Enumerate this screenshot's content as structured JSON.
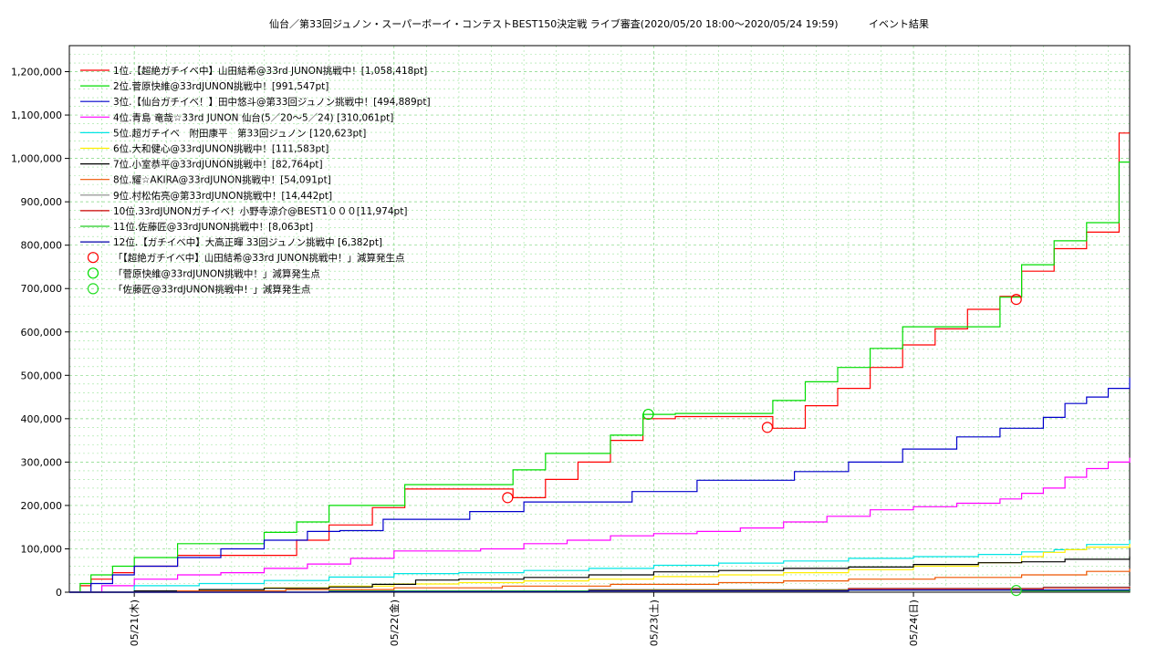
{
  "chart_data": {
    "type": "line",
    "title": "仙台／第33回ジュノン・スーパーボーイ・コンテストBEST150決定戦 ライブ審査(2020/05/20 18:00〜2020/05/24 19:59)",
    "title_suffix": "イベント結果",
    "xlabel": "",
    "ylabel": "",
    "ylim": [
      0,
      1260000
    ],
    "yticks": [
      0,
      100000,
      200000,
      300000,
      400000,
      500000,
      600000,
      700000,
      800000,
      900000,
      1000000,
      1100000,
      1200000
    ],
    "ytick_labels": [
      "0",
      "100,000",
      "200,000",
      "300,000",
      "400,000",
      "500,000",
      "600,000",
      "700,000",
      "800,000",
      "900,000",
      "1,000,000",
      "1,100,000",
      "1,200,000"
    ],
    "xlim_hours": [
      0,
      97.98
    ],
    "xticks": [
      6,
      30,
      54,
      78
    ],
    "xtick_labels": [
      "05/21(木)",
      "05/22(金)",
      "05/23(土)",
      "05/24(日)"
    ],
    "grid": true,
    "legend_position": "top-left",
    "series": [
      {
        "name": "1位.【超絶ガチイベ中】山田結希@33rd JUNON挑戦中！[1,058,418pt]",
        "color": "#ff0000",
        "x": [
          0,
          1,
          2,
          4,
          6,
          10,
          14,
          18,
          21,
          24,
          28,
          31,
          40,
          41,
          44,
          47,
          50,
          53,
          56,
          64,
          65,
          68,
          71,
          74,
          77,
          80,
          83,
          86,
          88,
          91,
          94,
          97,
          97.98
        ],
        "y": [
          0,
          15000,
          30000,
          45000,
          60000,
          85000,
          85000,
          85000,
          120000,
          155000,
          195000,
          238000,
          238000,
          218000,
          260000,
          300000,
          350000,
          400000,
          405000,
          405000,
          378000,
          430000,
          470000,
          518000,
          570000,
          607000,
          652000,
          682000,
          740000,
          792000,
          830000,
          1058418,
          1058418
        ]
      },
      {
        "name": "2位.菅原快維@33rdJUNON挑戦中！[991,547pt]",
        "color": "#00dd00",
        "x": [
          0,
          1,
          2,
          4,
          6,
          10,
          14,
          18,
          21,
          24,
          28,
          31,
          40,
          41,
          44,
          47,
          50,
          53,
          56,
          64,
          65,
          68,
          71,
          74,
          77,
          80,
          83,
          86,
          88,
          91,
          94,
          97,
          97.98
        ],
        "y": [
          0,
          20000,
          40000,
          60000,
          80000,
          112000,
          112000,
          138000,
          162000,
          200000,
          200000,
          248000,
          248000,
          282000,
          320000,
          320000,
          362000,
          410000,
          412000,
          412000,
          442000,
          485000,
          518000,
          562000,
          612000,
          612000,
          612000,
          680000,
          755000,
          810000,
          852000,
          991547,
          991547
        ]
      },
      {
        "name": "3位.【仙台ガチイベ！】田中悠斗@第33回ジュノン挑戦中！[494,889pt]",
        "color": "#0000cc",
        "x": [
          0,
          2,
          4,
          6,
          10,
          14,
          18,
          22,
          25,
          29,
          33,
          37,
          42,
          47,
          52,
          58,
          62,
          67,
          72,
          77,
          82,
          86,
          90,
          92,
          94,
          96,
          97.98
        ],
        "y": [
          0,
          20000,
          40000,
          60000,
          80000,
          100000,
          120000,
          140000,
          142000,
          168000,
          168000,
          186000,
          208000,
          208000,
          232000,
          258000,
          258000,
          278000,
          300000,
          330000,
          358000,
          378000,
          403000,
          435000,
          450000,
          470000,
          494889
        ]
      },
      {
        "name": "4位.青島 竜哉☆33rd JUNON 仙台(5／20〜5／24) [310,061pt]",
        "color": "#ff00ff",
        "x": [
          0,
          3,
          6,
          10,
          14,
          18,
          22,
          26,
          30,
          34,
          38,
          42,
          46,
          50,
          54,
          58,
          62,
          66,
          70,
          74,
          78,
          82,
          86,
          88,
          90,
          92,
          94,
          96,
          97.98
        ],
        "y": [
          0,
          15000,
          30000,
          40000,
          45000,
          55000,
          65000,
          78000,
          95000,
          95000,
          100000,
          112000,
          120000,
          130000,
          135000,
          140000,
          148000,
          162000,
          175000,
          190000,
          197000,
          205000,
          215000,
          228000,
          240000,
          265000,
          285000,
          300000,
          310061
        ]
      },
      {
        "name": "5位.超ガチイベ　附田康平　第33回ジュノン [120,623pt]",
        "color": "#00e5e5",
        "x": [
          0,
          6,
          12,
          18,
          24,
          30,
          36,
          42,
          48,
          54,
          60,
          66,
          72,
          78,
          84,
          88,
          91,
          94,
          97.98
        ],
        "y": [
          0,
          15000,
          20000,
          27000,
          35000,
          43000,
          45000,
          50000,
          55000,
          62000,
          67000,
          72000,
          78000,
          82000,
          87000,
          93000,
          98000,
          110000,
          120623
        ]
      },
      {
        "name": "6位.大和健心@33rdJUNON挑戦中！[111,583pt]",
        "color": "#ffee00",
        "x": [
          0,
          6,
          12,
          18,
          24,
          30,
          36,
          42,
          48,
          54,
          60,
          66,
          72,
          78,
          84,
          88,
          90,
          92,
          94,
          97.98
        ],
        "y": [
          0,
          3000,
          6000,
          10000,
          14000,
          19000,
          22000,
          26000,
          30000,
          36000,
          40000,
          45000,
          52000,
          60000,
          68000,
          82000,
          92000,
          98000,
          104000,
          111583
        ]
      },
      {
        "name": "7位.小室恭平@33rdJUNON挑戦中！[82,764pt]",
        "color": "#000000",
        "x": [
          0,
          6,
          12,
          18,
          24,
          28,
          32,
          36,
          42,
          48,
          54,
          60,
          66,
          72,
          78,
          84,
          88,
          92,
          97.98
        ],
        "y": [
          0,
          3000,
          6000,
          9000,
          12000,
          18000,
          28000,
          30000,
          34000,
          40000,
          47000,
          50000,
          55000,
          58000,
          64000,
          68000,
          70000,
          76000,
          82764
        ]
      },
      {
        "name": "8位.耀☆AKIRA@33rdJUNON挑戦中！[54,091pt]",
        "color": "#ee5500",
        "x": [
          0,
          10,
          20,
          30,
          40,
          50,
          60,
          66,
          72,
          80,
          88,
          94,
          97.98
        ],
        "y": [
          0,
          3000,
          6000,
          10000,
          14000,
          18000,
          22000,
          26000,
          30000,
          34000,
          40000,
          48000,
          54091
        ]
      },
      {
        "name": "9位.村松佑亮@第33rdJUNON挑戦中！[14,442pt]",
        "color": "#888888",
        "x": [
          0,
          24,
          48,
          72,
          90,
          97.98
        ],
        "y": [
          0,
          3000,
          6000,
          9000,
          12000,
          14442
        ]
      },
      {
        "name": "10位.33rdJUNONガチイベ！小野寺涼介@BEST1０００[11,974pt]",
        "color": "#cc0000",
        "x": [
          0,
          24,
          48,
          72,
          90,
          97.98
        ],
        "y": [
          0,
          2500,
          5000,
          8000,
          10000,
          11974
        ]
      },
      {
        "name": "11位.佐藤匠@33rdJUNON挑戦中！[8,063pt]",
        "color": "#22cc22",
        "x": [
          0,
          24,
          48,
          72,
          87,
          88,
          97.98
        ],
        "y": [
          0,
          3000,
          4000,
          5000,
          6000,
          3000,
          8063
        ]
      },
      {
        "name": "12位.【ガチイベ中】大高正暉 33回ジュノン挑戦中 [6,382pt]",
        "color": "#0000aa",
        "x": [
          0,
          24,
          48,
          72,
          97.98
        ],
        "y": [
          0,
          1500,
          3000,
          5000,
          6382
        ]
      }
    ],
    "markers": [
      {
        "name": "「【超絶ガチイベ中】山田結希@33rd JUNON挑戦中！」減算発生点",
        "color": "#ff0000",
        "points": [
          {
            "x": 40.5,
            "y": 218000
          },
          {
            "x": 64.5,
            "y": 380000
          },
          {
            "x": 87.5,
            "y": 675000
          }
        ]
      },
      {
        "name": "「菅原快維@33rdJUNON挑戦中！」減算発生点",
        "color": "#00dd00",
        "points": [
          {
            "x": 53.5,
            "y": 410000
          }
        ]
      },
      {
        "name": "「佐藤匠@33rdJUNON挑戦中！」減算発生点",
        "color": "#22dd22",
        "points": [
          {
            "x": 87.5,
            "y": 4000
          }
        ]
      }
    ]
  }
}
